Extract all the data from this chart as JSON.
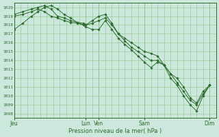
{
  "bg_color": "#cce8dd",
  "grid_color": "#99cc99",
  "line_color": "#2d6a2d",
  "marker_color": "#2d6a2d",
  "xlabel": "Pression niveau de la mer( hPa )",
  "ylim": [
    1007.5,
    1020.5
  ],
  "yticks": [
    1008,
    1009,
    1010,
    1011,
    1012,
    1013,
    1014,
    1015,
    1016,
    1017,
    1018,
    1019,
    1020
  ],
  "x_day_labels": [
    "Jeu",
    "Lun",
    "Ven",
    "Sam",
    "Dim"
  ],
  "x_day_positions": [
    0,
    33,
    39,
    60,
    90
  ],
  "xlim": [
    0,
    93
  ],
  "lines": [
    {
      "x": [
        0,
        4,
        8,
        11,
        14,
        17,
        20,
        23,
        26,
        29,
        32,
        33,
        36,
        39,
        42,
        45,
        48,
        51,
        54,
        57,
        60,
        63,
        66,
        69,
        72,
        75,
        78,
        81,
        84,
        87,
        90
      ],
      "y": [
        1017.5,
        1018.2,
        1019.0,
        1019.5,
        1020.0,
        1020.2,
        1019.8,
        1019.2,
        1018.8,
        1018.3,
        1018.0,
        1017.8,
        1017.5,
        1017.5,
        1018.5,
        1017.5,
        1016.5,
        1015.8,
        1015.2,
        1014.5,
        1013.8,
        1013.2,
        1013.8,
        1013.5,
        1012.0,
        1011.2,
        1010.0,
        1009.0,
        1008.3,
        1010.0,
        1011.2
      ]
    },
    {
      "x": [
        0,
        4,
        8,
        11,
        14,
        17,
        20,
        23,
        26,
        29,
        32,
        33,
        36,
        39,
        42,
        45,
        48,
        51,
        54,
        57,
        60,
        63,
        66,
        69,
        72,
        75,
        78,
        81,
        84,
        87,
        90
      ],
      "y": [
        1019.0,
        1019.2,
        1019.5,
        1019.8,
        1019.5,
        1019.0,
        1018.8,
        1018.5,
        1018.3,
        1018.2,
        1018.0,
        1018.0,
        1018.2,
        1018.5,
        1018.8,
        1018.0,
        1017.0,
        1016.2,
        1015.5,
        1015.0,
        1014.5,
        1014.0,
        1014.0,
        1013.5,
        1012.5,
        1011.5,
        1010.5,
        1009.5,
        1009.0,
        1010.2,
        1011.2
      ]
    },
    {
      "x": [
        0,
        4,
        8,
        11,
        14,
        17,
        20,
        23,
        26,
        29,
        32,
        33,
        36,
        39,
        42,
        45,
        48,
        51,
        54,
        57,
        60,
        63,
        66,
        69,
        72,
        75,
        78,
        81,
        84,
        87,
        90
      ],
      "y": [
        1019.2,
        1019.5,
        1019.8,
        1020.0,
        1020.2,
        1019.8,
        1019.0,
        1018.8,
        1018.5,
        1018.3,
        1018.2,
        1018.0,
        1018.5,
        1019.0,
        1019.2,
        1018.2,
        1017.0,
        1016.5,
        1016.0,
        1015.5,
        1015.0,
        1014.8,
        1014.5,
        1013.5,
        1012.5,
        1012.0,
        1011.0,
        1009.8,
        1009.2,
        1010.5,
        1011.2
      ]
    }
  ]
}
